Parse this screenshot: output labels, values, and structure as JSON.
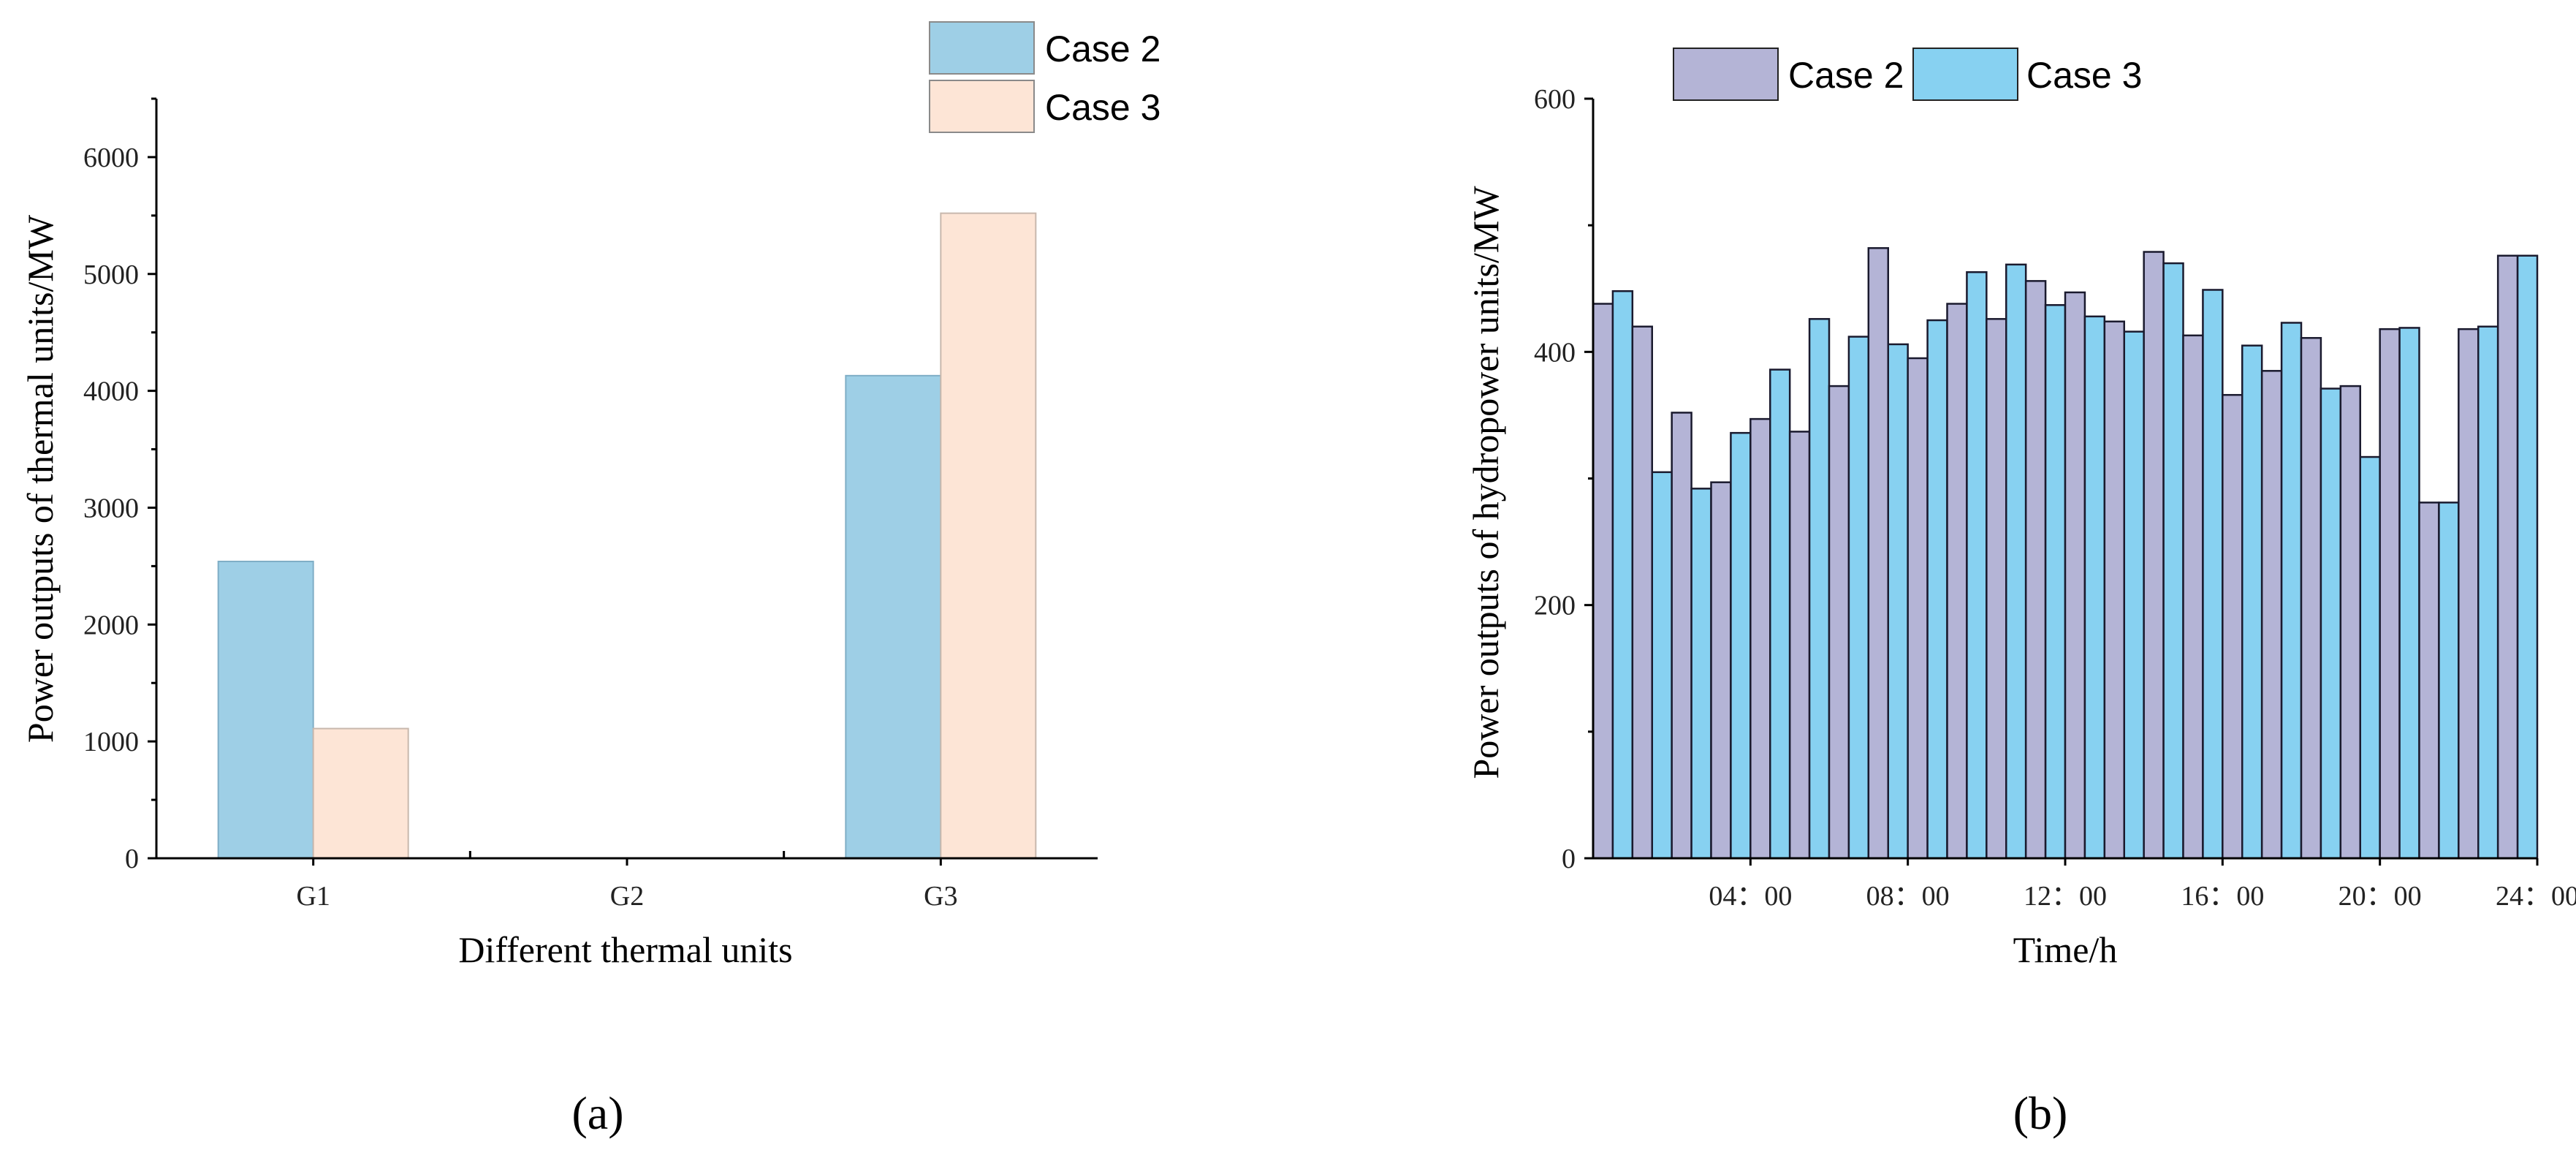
{
  "chart_data": [
    {
      "type": "bar",
      "panel_label": "(a)",
      "categories": [
        "G1",
        "G2",
        "G3"
      ],
      "series": [
        {
          "name": "Case 2",
          "color": "#9ecfe6",
          "values": [
            2540,
            0,
            4130
          ]
        },
        {
          "name": "Case 3",
          "color": "#fde5d6",
          "values": [
            1110,
            0,
            5520
          ]
        }
      ],
      "xlabel": "Different thermal units",
      "ylabel": "Power outputs of thermal units/MW",
      "ylim": [
        0,
        6500
      ],
      "yticks": [
        0,
        1000,
        2000,
        3000,
        4000,
        5000,
        6000
      ],
      "legend_position": "top-right",
      "grid": false
    },
    {
      "type": "bar",
      "panel_label": "(b)",
      "categories": [
        "1",
        "2",
        "3",
        "4",
        "5",
        "6",
        "7",
        "8",
        "9",
        "10",
        "11",
        "12",
        "13",
        "14",
        "15",
        "16",
        "17",
        "18",
        "19",
        "20",
        "21",
        "22",
        "23",
        "24"
      ],
      "series": [
        {
          "name": "Case 2",
          "color": "#b4b4d6",
          "values": [
            438,
            420,
            352,
            297,
            347,
            337,
            373,
            482,
            395,
            438,
            426,
            456,
            447,
            424,
            479,
            413,
            366,
            385,
            411,
            373,
            418,
            281,
            418,
            476
          ]
        },
        {
          "name": "Case 3",
          "color": "#87d1f1",
          "values": [
            448,
            305,
            292,
            336,
            386,
            426,
            412,
            406,
            425,
            463,
            469,
            437,
            428,
            416,
            470,
            449,
            405,
            423,
            371,
            317,
            419,
            281,
            420,
            476
          ]
        }
      ],
      "xlabel": "Time/h",
      "ylabel": "Power outputs of hydropower units/MW",
      "ylim": [
        0,
        600
      ],
      "yticks": [
        0,
        200,
        400,
        600
      ],
      "xtick_labels": [
        {
          "after_category": 4,
          "label": "04：00"
        },
        {
          "after_category": 8,
          "label": "08：00"
        },
        {
          "after_category": 12,
          "label": "12：00"
        },
        {
          "after_category": 16,
          "label": "16：00"
        },
        {
          "after_category": 20,
          "label": "20：00"
        },
        {
          "after_category": 24,
          "label": "24：00"
        }
      ],
      "legend_position": "top",
      "grid": false
    }
  ]
}
